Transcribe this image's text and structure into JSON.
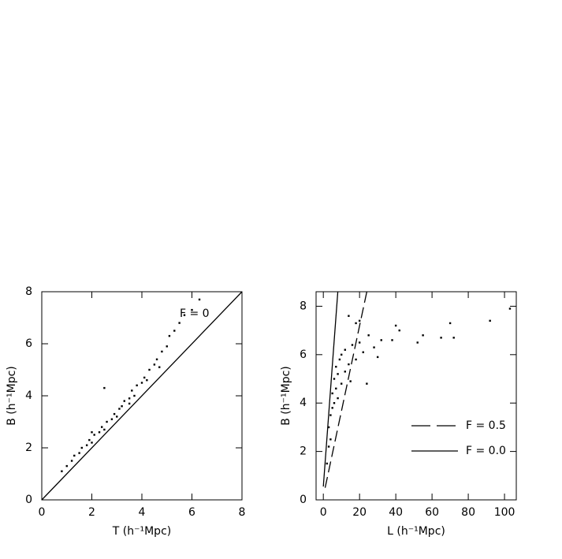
{
  "chart_data": [
    {
      "type": "scatter",
      "annotation": "F = 0",
      "x_label": "T (h⁻¹Mpc)",
      "y_label": "B (h⁻¹Mpc)",
      "xlim": [
        0,
        8
      ],
      "ylim": [
        0,
        8
      ],
      "xticks": [
        0,
        2,
        4,
        6,
        8
      ],
      "yticks": [
        0,
        2,
        4,
        6,
        8
      ],
      "series": [
        {
          "kind": "points",
          "color": "#000",
          "x": [
            0.8,
            1.0,
            1.2,
            1.3,
            1.5,
            1.6,
            1.8,
            1.9,
            2.0,
            2.1,
            2.3,
            2.4,
            2.5,
            2.6,
            2.8,
            2.9,
            3.0,
            3.1,
            3.2,
            3.3,
            3.5,
            3.6,
            3.7,
            3.8,
            4.0,
            4.1,
            4.2,
            4.3,
            4.5,
            4.6,
            4.7,
            4.8,
            5.0,
            5.1,
            5.3,
            5.5,
            5.7,
            6.0,
            6.3,
            2.5,
            3.5,
            2.0
          ],
          "values": [
            1.1,
            1.3,
            1.5,
            1.7,
            1.8,
            2.0,
            2.1,
            2.3,
            2.2,
            2.5,
            2.6,
            2.8,
            2.7,
            3.0,
            3.1,
            3.3,
            3.2,
            3.5,
            3.6,
            3.8,
            3.9,
            4.2,
            4.0,
            4.4,
            4.5,
            4.7,
            4.6,
            5.0,
            5.2,
            5.4,
            5.1,
            5.7,
            5.9,
            6.3,
            6.5,
            6.8,
            7.1,
            7.3,
            7.7,
            4.3,
            3.7,
            2.6
          ]
        },
        {
          "kind": "line",
          "color": "#000",
          "dashed": false,
          "x": [
            0,
            8
          ],
          "values": [
            0,
            8
          ]
        }
      ]
    },
    {
      "type": "scatter",
      "x_label": "L (h⁻¹Mpc)",
      "y_label": "B (h⁻¹Mpc)",
      "xlim": [
        -4,
        106.5
      ],
      "ylim": [
        0,
        8.6
      ],
      "xticks": [
        0,
        20,
        40,
        60,
        80,
        100
      ],
      "yticks": [
        0,
        2,
        4,
        6,
        8
      ],
      "series": [
        {
          "kind": "points",
          "color": "#000",
          "x": [
            2,
            3,
            3,
            4,
            4,
            5,
            5,
            6,
            6,
            7,
            7,
            8,
            8,
            9,
            10,
            10,
            12,
            12,
            14,
            15,
            16,
            18,
            20,
            22,
            25,
            28,
            30,
            32,
            20,
            14,
            40,
            42,
            38,
            52,
            55,
            65,
            70,
            72,
            92,
            103,
            18,
            24
          ],
          "values": [
            1.5,
            2.2,
            3.0,
            2.5,
            3.5,
            3.8,
            4.4,
            4.0,
            5.0,
            4.6,
            5.5,
            4.2,
            5.2,
            5.8,
            4.8,
            6.0,
            5.3,
            6.2,
            5.6,
            4.9,
            6.4,
            5.8,
            6.5,
            6.1,
            6.8,
            6.3,
            5.9,
            6.6,
            7.4,
            7.6,
            7.2,
            7.0,
            6.6,
            6.5,
            6.8,
            6.7,
            7.3,
            6.7,
            7.4,
            7.9,
            7.3,
            4.8
          ]
        },
        {
          "kind": "line",
          "name": "F = 0.5",
          "color": "#000",
          "dashed": true,
          "x": [
            1,
            24
          ],
          "values": [
            0.5,
            8.6
          ]
        },
        {
          "kind": "line",
          "name": "F = 0.0",
          "color": "#000",
          "dashed": false,
          "x": [
            0,
            8
          ],
          "values": [
            0.55,
            8.6
          ]
        }
      ]
    }
  ]
}
